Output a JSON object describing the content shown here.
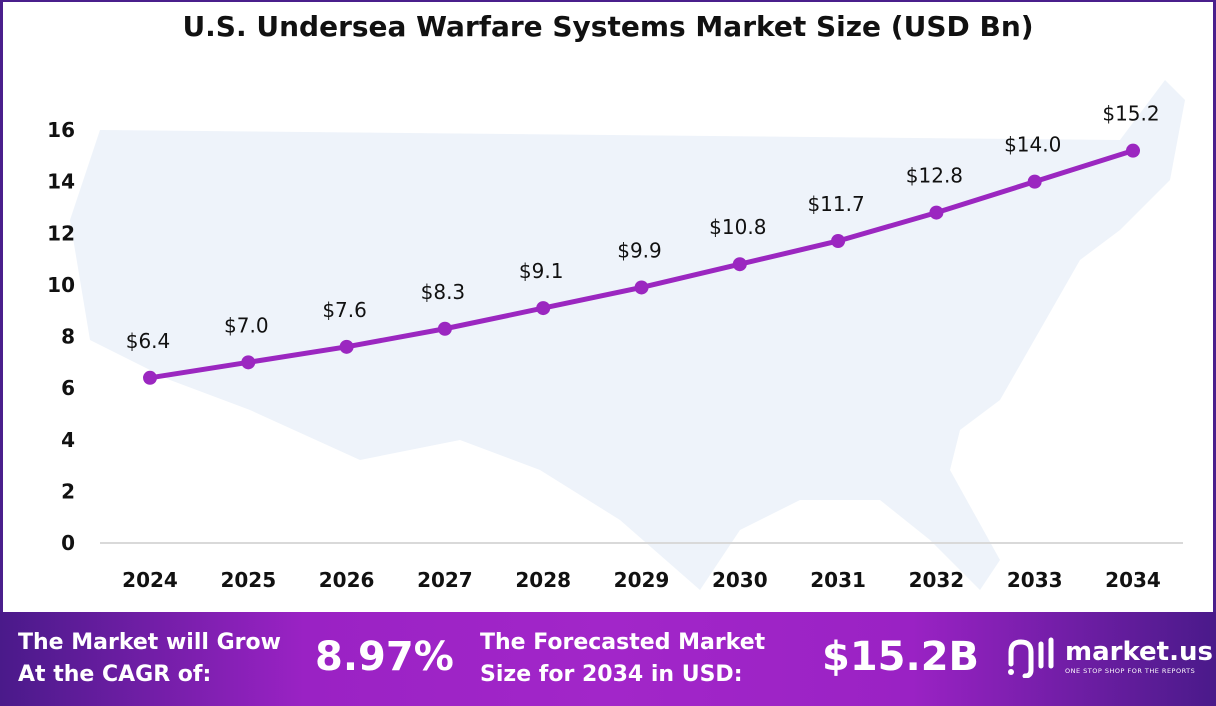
{
  "chart_data": {
    "type": "line",
    "title": "U.S. Undersea Warfare Systems Market Size (USD Bn)",
    "categories": [
      "2024",
      "2025",
      "2026",
      "2027",
      "2028",
      "2029",
      "2030",
      "2031",
      "2032",
      "2033",
      "2034"
    ],
    "values": [
      6.4,
      7.0,
      7.6,
      8.3,
      9.1,
      9.9,
      10.8,
      11.7,
      12.8,
      14.0,
      15.2
    ],
    "data_labels": [
      "$6.4",
      "$7.0",
      "$7.6",
      "$8.3",
      "$9.1",
      "$9.9",
      "$10.8",
      "$11.7",
      "$12.8",
      "$14.0",
      "$15.2"
    ],
    "yticks": [
      "0",
      "2",
      "4",
      "6",
      "8",
      "10",
      "12",
      "14",
      "16"
    ],
    "ylim": [
      0,
      16
    ],
    "xlabel": "",
    "ylabel": "",
    "color": "#9b27c0"
  },
  "footer": {
    "cagr_label_1": "The Market will Grow",
    "cagr_label_2": "At the CAGR of:",
    "cagr_value": "8.97%",
    "forecast_label_1": "The Forecasted Market",
    "forecast_label_2": "Size for 2034 in USD:",
    "forecast_value": "$15.2B",
    "logo_name": "market.us",
    "logo_tagline": "ONE STOP SHOP FOR THE REPORTS"
  }
}
